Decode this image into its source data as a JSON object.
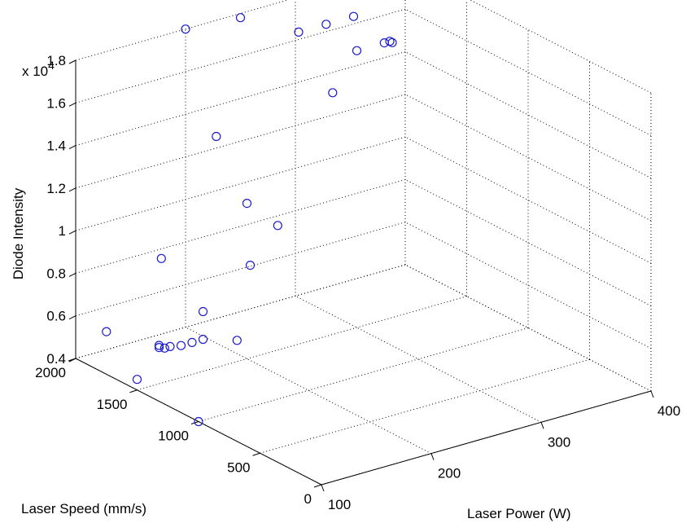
{
  "chart_data": {
    "type": "scatter",
    "title": "",
    "xlabel": "Laser Power (W)",
    "ylabel": "Laser Speed (mm/s)",
    "zlabel": "Diode Intensity",
    "z_multiplier_label": "x 10",
    "z_multiplier_exp": "4",
    "xlim": [
      100,
      400
    ],
    "ylim": [
      0,
      2000
    ],
    "zlim": [
      0.4,
      1.8
    ],
    "x_ticks": [
      "100",
      "200",
      "300",
      "400"
    ],
    "y_ticks": [
      "0",
      "500",
      "1000",
      "1500",
      "2000"
    ],
    "z_ticks": [
      "0.4",
      "0.6",
      "0.8",
      "1",
      "1.2",
      "1.4",
      "1.6",
      "1.8"
    ],
    "grid": true,
    "marker": "circle",
    "marker_color": "#1c1ccf",
    "points": [
      {
        "x": 100,
        "y": 1000,
        "z": 0.4
      },
      {
        "x": 100,
        "y": 1500,
        "z": 0.45
      },
      {
        "x": 100,
        "y": 1750,
        "z": 0.6
      },
      {
        "x": 120,
        "y": 1500,
        "z": 0.57
      },
      {
        "x": 120,
        "y": 1500,
        "z": 0.58
      },
      {
        "x": 125,
        "y": 1500,
        "z": 0.56
      },
      {
        "x": 130,
        "y": 1500,
        "z": 0.56
      },
      {
        "x": 140,
        "y": 1500,
        "z": 0.55
      },
      {
        "x": 150,
        "y": 1500,
        "z": 0.55
      },
      {
        "x": 160,
        "y": 1500,
        "z": 0.55
      },
      {
        "x": 135,
        "y": 1000,
        "z": 0.73
      },
      {
        "x": 150,
        "y": 1750,
        "z": 0.87
      },
      {
        "x": 175,
        "y": 1250,
        "z": 0.95
      },
      {
        "x": 160,
        "y": 1500,
        "z": 0.68
      },
      {
        "x": 200,
        "y": 1500,
        "z": 1.13
      },
      {
        "x": 200,
        "y": 1250,
        "z": 1.1
      },
      {
        "x": 200,
        "y": 1750,
        "z": 1.37
      },
      {
        "x": 200,
        "y": 2000,
        "z": 1.8
      },
      {
        "x": 250,
        "y": 2000,
        "z": 1.78
      },
      {
        "x": 275,
        "y": 1750,
        "z": 1.75
      },
      {
        "x": 250,
        "y": 1250,
        "z": 1.65
      },
      {
        "x": 300,
        "y": 1750,
        "z": 1.75
      },
      {
        "x": 325,
        "y": 1750,
        "z": 1.75
      },
      {
        "x": 300,
        "y": 1500,
        "z": 1.7
      },
      {
        "x": 325,
        "y": 1500,
        "z": 1.7
      },
      {
        "x": 330,
        "y": 1500,
        "z": 1.7
      },
      {
        "x": 330,
        "y": 1480,
        "z": 1.7
      }
    ]
  }
}
